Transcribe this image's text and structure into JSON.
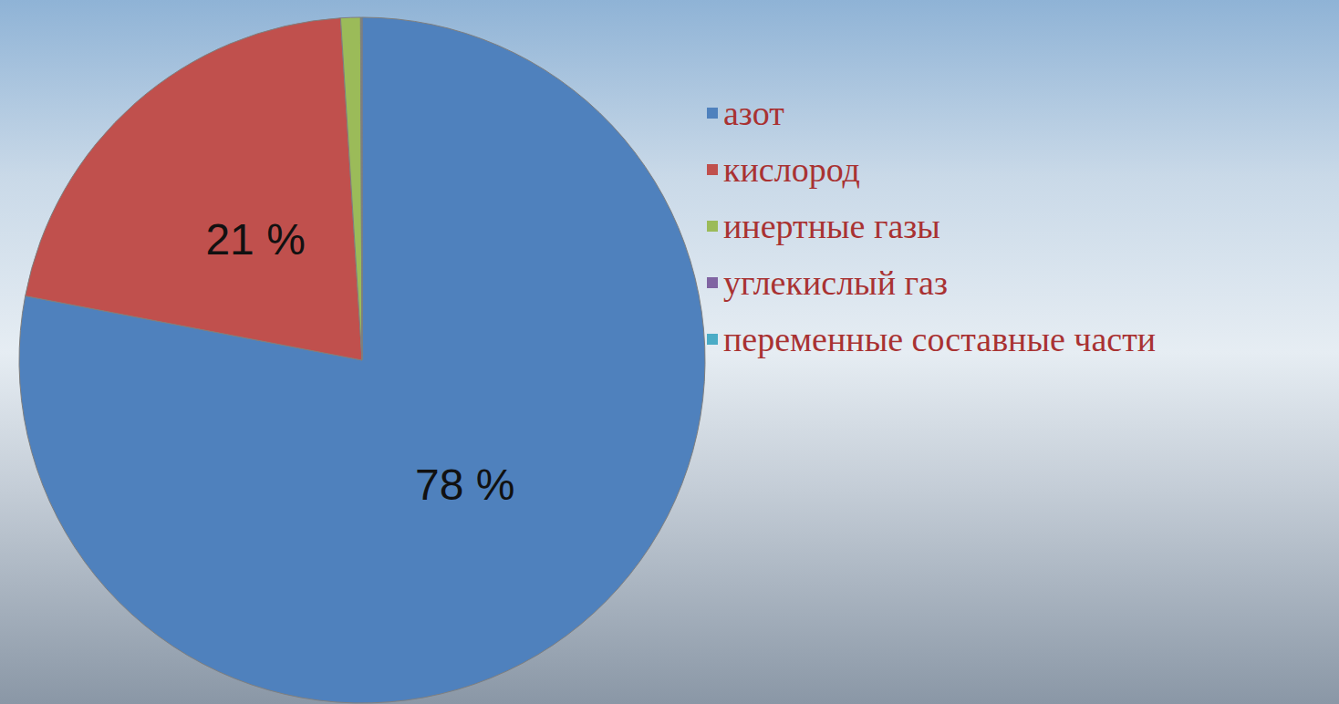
{
  "chart_data": {
    "type": "pie",
    "categories": [
      "азот",
      "кислород",
      "инертные газы",
      "углекислый газ",
      "переменные составные части"
    ],
    "values": [
      78,
      21,
      0.93,
      0.04,
      0.03
    ],
    "value_labels": [
      "78 %",
      "21 %",
      null,
      null,
      null
    ],
    "data_labels": true,
    "colors": [
      "#4f81bd",
      "#c0504d",
      "#9bbb59",
      "#8064a2",
      "#4bacc6"
    ],
    "legend": "right"
  }
}
